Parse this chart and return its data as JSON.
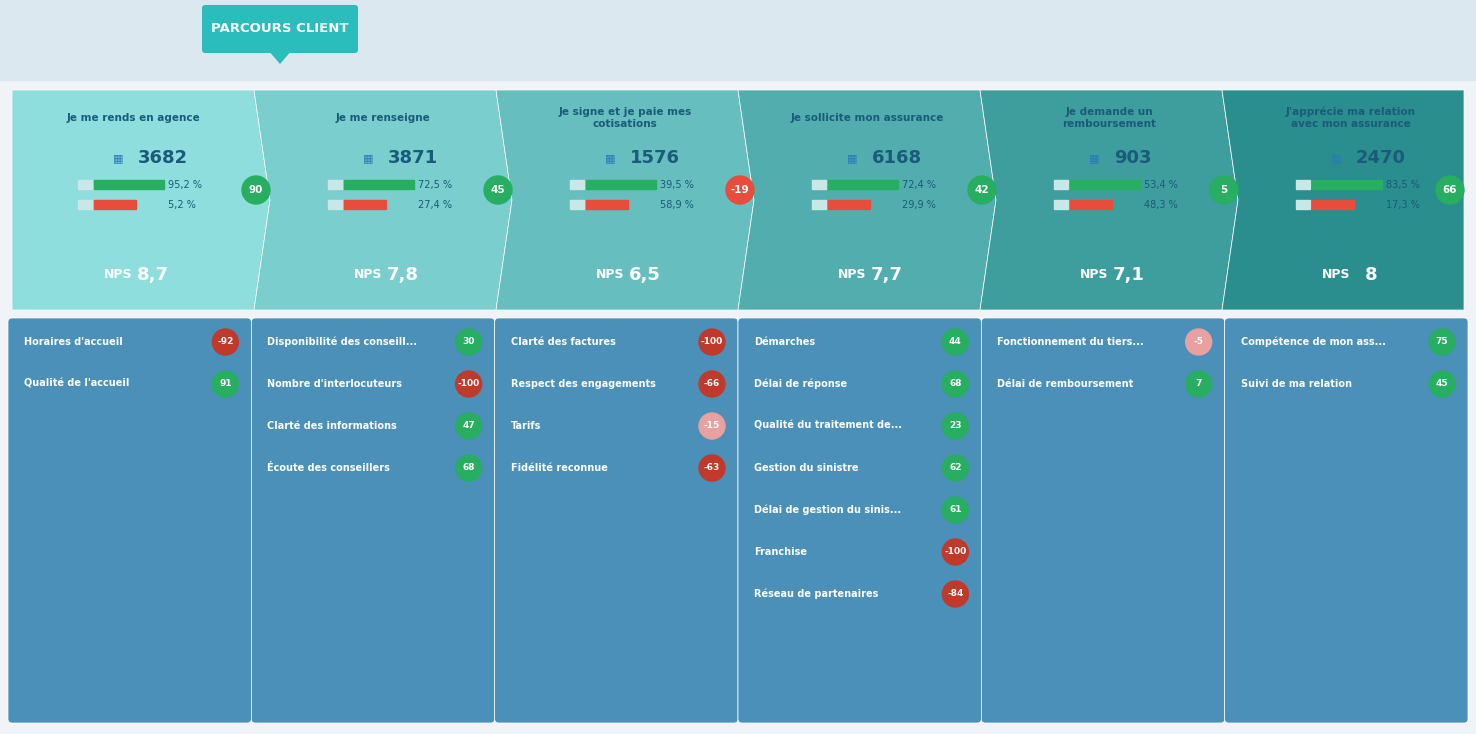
{
  "title": "PARCOURS CLIENT",
  "title_bg": "#2bbcbc",
  "title_color": "white",
  "bg_color": "#f0f4f8",
  "header_bg": "#e8eef4",
  "stages": [
    {
      "label": "Je me rends en agence",
      "count": "3682",
      "pct1": "95,2 %",
      "pct2": "5,2 %",
      "nps_val": "8,7",
      "badge": "90",
      "badge_color": "#27ae60"
    },
    {
      "label": "Je me renseigne",
      "count": "3871",
      "pct1": "72,5 %",
      "pct2": "27,4 %",
      "nps_val": "7,8",
      "badge": "45",
      "badge_color": "#27ae60"
    },
    {
      "label": "Je signe et je paie mes\ncotisations",
      "count": "1576",
      "pct1": "39,5 %",
      "pct2": "58,9 %",
      "nps_val": "6,5",
      "badge": "-19",
      "badge_color": "#e74c3c"
    },
    {
      "label": "Je sollicite mon assurance",
      "count": "6168",
      "pct1": "72,4 %",
      "pct2": "29,9 %",
      "nps_val": "7,7",
      "badge": "42",
      "badge_color": "#27ae60"
    },
    {
      "label": "Je demande un\nremboursement",
      "count": "903",
      "pct1": "53,4 %",
      "pct2": "48,3 %",
      "nps_val": "7,1",
      "badge": "5",
      "badge_color": "#27ae60"
    },
    {
      "label": "J'apprécie ma relation\navec mon assurance",
      "count": "2470",
      "pct1": "83,5 %",
      "pct2": "17,3 %",
      "nps_val": "8",
      "badge": "66",
      "badge_color": "#27ae60"
    }
  ],
  "cards": [
    {
      "items": [
        {
          "label": "Horaires d'accueil",
          "value": "-92",
          "color": "#c0392b"
        },
        {
          "label": "Qualité de l'accueil",
          "value": "91",
          "color": "#27ae60"
        }
      ]
    },
    {
      "items": [
        {
          "label": "Disponibilité des conseill...",
          "value": "30",
          "color": "#27ae60"
        },
        {
          "label": "Nombre d'interlocuteurs",
          "value": "-100",
          "color": "#c0392b"
        },
        {
          "label": "Clarté des informations",
          "value": "47",
          "color": "#27ae60"
        },
        {
          "label": "Écoute des conseillers",
          "value": "68",
          "color": "#27ae60"
        }
      ]
    },
    {
      "items": [
        {
          "label": "Clarté des factures",
          "value": "-100",
          "color": "#c0392b"
        },
        {
          "label": "Respect des engagements",
          "value": "-66",
          "color": "#c0392b"
        },
        {
          "label": "Tarifs",
          "value": "-15",
          "color": "#e8a0a0"
        },
        {
          "label": "Fidélité reconnue",
          "value": "-63",
          "color": "#c0392b"
        }
      ]
    },
    {
      "items": [
        {
          "label": "Démarches",
          "value": "44",
          "color": "#27ae60"
        },
        {
          "label": "Délai de réponse",
          "value": "68",
          "color": "#27ae60"
        },
        {
          "label": "Qualité du traitement de...",
          "value": "23",
          "color": "#27ae60"
        },
        {
          "label": "Gestion du sinistre",
          "value": "62",
          "color": "#27ae60"
        },
        {
          "label": "Délai de gestion du sinis...",
          "value": "61",
          "color": "#27ae60"
        },
        {
          "label": "Franchise",
          "value": "-100",
          "color": "#c0392b"
        },
        {
          "label": "Réseau de partenaires",
          "value": "-84",
          "color": "#c0392b"
        }
      ]
    },
    {
      "items": [
        {
          "label": "Fonctionnement du tiers...",
          "value": "-5",
          "color": "#e8a0a0"
        },
        {
          "label": "Délai de remboursement",
          "value": "7",
          "color": "#27ae60"
        }
      ]
    },
    {
      "items": [
        {
          "label": "Compétence de mon ass...",
          "value": "75",
          "color": "#27ae60"
        },
        {
          "label": "Suivi de ma relation",
          "value": "45",
          "color": "#27ae60"
        }
      ]
    }
  ],
  "arrow_colors": [
    "#5bc8c8",
    "#4db8b8",
    "#3ea8a8",
    "#2e9898",
    "#1e8888",
    "#0e7878"
  ],
  "card_bg": "#4a90b8",
  "stage_bg_top": "#7dd8d8",
  "stage_bg_bottom": "#5bbcbc"
}
